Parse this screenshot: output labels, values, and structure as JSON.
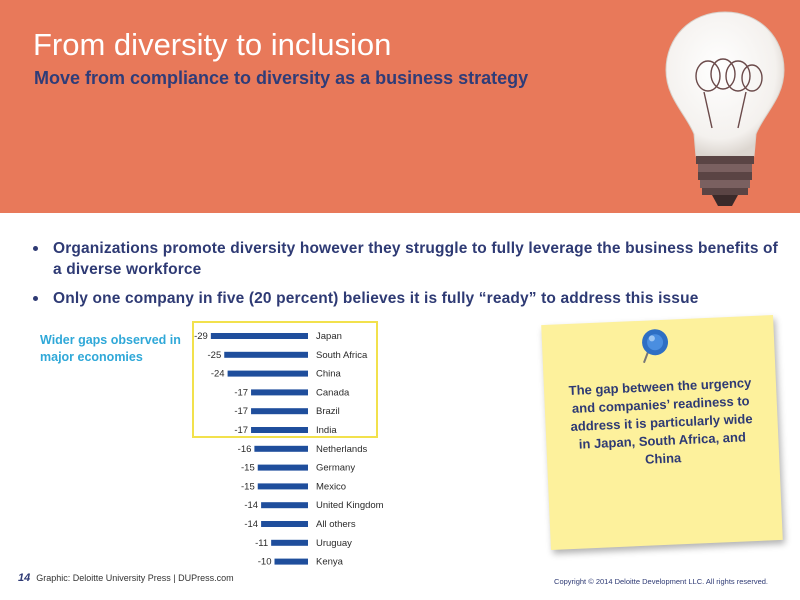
{
  "header": {
    "title": "From diversity to inclusion",
    "subtitle": "Move from compliance to diversity as a business strategy",
    "bulb_icon": "lightbulb-icon",
    "colors": {
      "band": "#e8795a",
      "title": "#ffffff",
      "subtitle": "#2f3c78"
    }
  },
  "bullets": [
    "Organizations promote diversity however they struggle to fully leverage the business benefits of a diverse workforce",
    "Only one company in five (20 percent) believes it is fully “ready” to address this issue"
  ],
  "callout": {
    "label": "Wider gaps observed in major economies",
    "color": "#2fa8d8",
    "highlight_color": "#f2e14c"
  },
  "chart_data": {
    "type": "bar",
    "orientation": "horizontal",
    "categories": [
      "Japan",
      "South Africa",
      "China",
      "Canada",
      "Brazil",
      "India",
      "Netherlands",
      "Germany",
      "Mexico",
      "United Kingdom",
      "All others",
      "Uruguay",
      "Kenya"
    ],
    "values": [
      -29,
      -25,
      -24,
      -17,
      -17,
      -17,
      -16,
      -15,
      -15,
      -14,
      -14,
      -11,
      -10
    ],
    "value_labels": [
      "-29",
      "-25",
      "-24",
      "-17",
      "-17",
      "-17",
      "-16",
      "-15",
      "-15",
      "-14",
      "-14",
      "-11",
      "-10"
    ],
    "highlighted_categories": [
      "Japan",
      "South Africa",
      "China",
      "Canada",
      "Brazil",
      "India"
    ],
    "bar_color": "#1f4e9c"
  },
  "sticky_note": {
    "text": "The gap between the urgency and companies’ readiness to address it is particularly wide in Japan, South Africa, and China",
    "color": "#fdf19c",
    "pin_icon": "pushpin-icon"
  },
  "footer": {
    "page": "14",
    "source": "Graphic: Deloitte University Press | DUPress.com",
    "copyright": "Copyright © 2014 Deloitte Development LLC. All rights reserved."
  }
}
